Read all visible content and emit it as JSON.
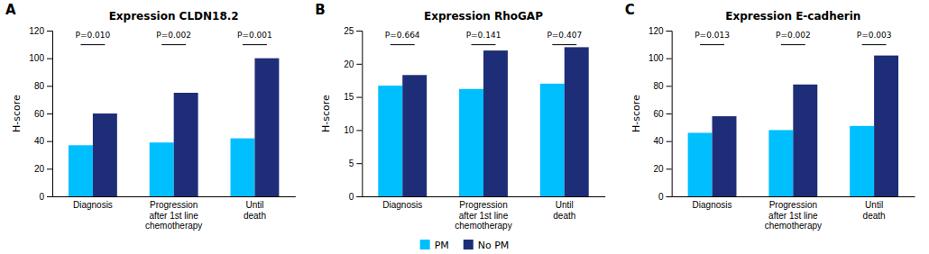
{
  "chart_data": [
    {
      "type": "bar",
      "label": "A",
      "title": "Expression CLDN18.2",
      "y_label": "H-score",
      "categories": [
        "Diagnosis",
        "Progression\nafter 1st line\nchemotherapy",
        "Until\ndeath"
      ],
      "series": [
        {
          "name": "PM",
          "color": "#00BFFF",
          "values": [
            37,
            39,
            42
          ]
        },
        {
          "name": "No PM",
          "color": "#1e2d78",
          "values": [
            60,
            75,
            100
          ]
        }
      ],
      "annotations": [
        "P=0.010",
        "P=0.002",
        "P=0.001"
      ],
      "ylim": [
        0,
        120
      ],
      "yticks": [
        0,
        20,
        40,
        60,
        80,
        100,
        120
      ],
      "grid": false
    },
    {
      "type": "bar",
      "label": "B",
      "title": "Expression RhoGAP",
      "y_label": "H-score",
      "categories": [
        "Diagnosis",
        "Progression\nafter 1st line\nchemotherapy",
        "Until\ndeath"
      ],
      "series": [
        {
          "name": "PM",
          "color": "#00BFFF",
          "values": [
            16.7,
            16.2,
            17.0
          ]
        },
        {
          "name": "No PM",
          "color": "#1e2d78",
          "values": [
            18.3,
            22.0,
            22.5
          ]
        }
      ],
      "annotations": [
        "P=0.664",
        "P=0.141",
        "P=0.407"
      ],
      "ylim": [
        0,
        25
      ],
      "yticks": [
        0,
        5,
        10,
        15,
        20,
        25
      ],
      "grid": false,
      "legend": "bottom"
    },
    {
      "type": "bar",
      "label": "C",
      "title": "Expression E-cadherin",
      "y_label": "H-score",
      "categories": [
        "Diagnosis",
        "Progression\nafter 1st line\nchemotherapy",
        "Until\ndeath"
      ],
      "series": [
        {
          "name": "PM",
          "color": "#00BFFF",
          "values": [
            46,
            48,
            51
          ]
        },
        {
          "name": "No PM",
          "color": "#1e2d78",
          "values": [
            58,
            81,
            102
          ]
        }
      ],
      "annotations": [
        "P=0.013",
        "P=0.002",
        "P=0.003"
      ],
      "ylim": [
        0,
        120
      ],
      "yticks": [
        0,
        20,
        40,
        60,
        80,
        100,
        120
      ],
      "grid": false
    }
  ]
}
